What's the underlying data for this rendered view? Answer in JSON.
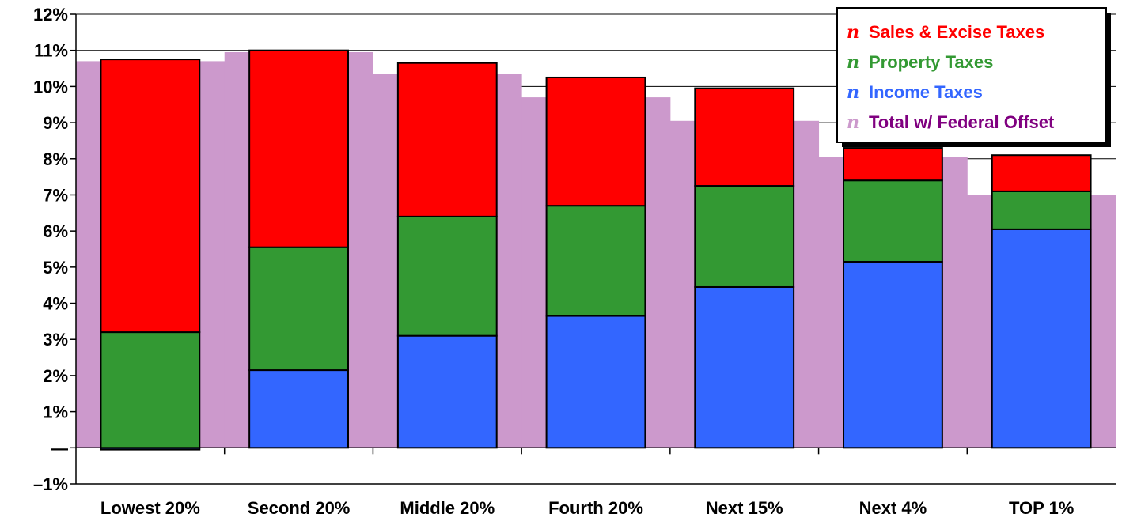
{
  "chart_data": {
    "type": "bar",
    "stacked": true,
    "categories": [
      "Lowest 20%",
      "Second 20%",
      "Middle 20%",
      "Fourth 20%",
      "Next 15%",
      "Next 4%",
      "TOP 1%"
    ],
    "series": [
      {
        "name": "Income Taxes",
        "color": "#3366ff",
        "values": [
          -0.05,
          2.15,
          3.1,
          3.65,
          4.45,
          5.15,
          6.05
        ]
      },
      {
        "name": "Property Taxes",
        "color": "#339933",
        "values": [
          3.2,
          3.4,
          3.3,
          3.05,
          2.8,
          2.25,
          1.05
        ]
      },
      {
        "name": "Sales & Excise Taxes",
        "color": "#ff0000",
        "values": [
          7.55,
          5.45,
          4.25,
          3.55,
          2.7,
          0.9,
          1.0
        ]
      }
    ],
    "background_series": {
      "name": "Total w/ Federal Offset",
      "color": "#cc99cc",
      "values": [
        10.7,
        10.95,
        10.35,
        9.7,
        9.05,
        8.05,
        7.0
      ]
    },
    "legend": {
      "position": "top-right",
      "marker": "n",
      "entries": [
        {
          "label": "Sales & Excise Taxes",
          "color": "#ff0000",
          "marker_color": "#ff0000"
        },
        {
          "label": "Property Taxes",
          "color": "#339933",
          "marker_color": "#339933"
        },
        {
          "label": "Income Taxes",
          "color": "#3366ff",
          "marker_color": "#3366ff"
        },
        {
          "label": "Total w/ Federal Offset",
          "color": "#800080",
          "marker_color": "#cc99cc"
        }
      ]
    },
    "ylim": [
      -1,
      12
    ],
    "yticks": [
      {
        "value": 12,
        "label": "12%"
      },
      {
        "value": 11,
        "label": "11%"
      },
      {
        "value": 10,
        "label": "10%"
      },
      {
        "value": 9,
        "label": "9%"
      },
      {
        "value": 8,
        "label": "8%"
      },
      {
        "value": 7,
        "label": "7%"
      },
      {
        "value": 6,
        "label": "6%"
      },
      {
        "value": 5,
        "label": "5%"
      },
      {
        "value": 4,
        "label": "4%"
      },
      {
        "value": 3,
        "label": "3%"
      },
      {
        "value": 2,
        "label": "2%"
      },
      {
        "value": 1,
        "label": "1%"
      },
      {
        "value": 0,
        "label": "—"
      },
      {
        "value": -1,
        "label": "–1%"
      }
    ],
    "grid": true,
    "title": "",
    "xlabel": "",
    "ylabel": ""
  }
}
